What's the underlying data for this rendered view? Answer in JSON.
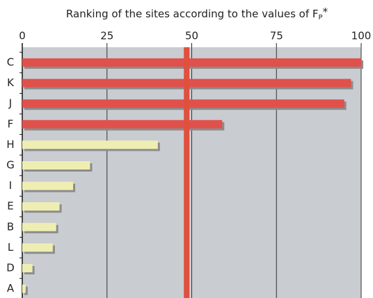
{
  "chart_data": {
    "type": "bar",
    "orientation": "horizontal",
    "title": "Ranking of the sites according to the values of F",
    "title_subscript": "P",
    "title_suffix": "*",
    "categories": [
      "C",
      "K",
      "J",
      "F",
      "H",
      "G",
      "I",
      "E",
      "B",
      "L",
      "D",
      "A"
    ],
    "values": [
      100,
      97,
      95,
      59,
      40,
      20,
      15,
      11,
      10,
      9,
      3,
      1
    ],
    "colors": [
      "#e0514b",
      "#e0514b",
      "#e0514b",
      "#e0514b",
      "#eeeeb2",
      "#eeeeb2",
      "#eeeeb2",
      "#eeeeb2",
      "#eeeeb2",
      "#eeeeb2",
      "#eeeeb2",
      "#eeeeb2"
    ],
    "threshold": 48.5,
    "threshold_color": "#e0503f",
    "xlim": [
      0,
      100
    ],
    "xticks": [
      0,
      25,
      50,
      75,
      100
    ],
    "grid": true,
    "background": "#c9ccd0"
  }
}
